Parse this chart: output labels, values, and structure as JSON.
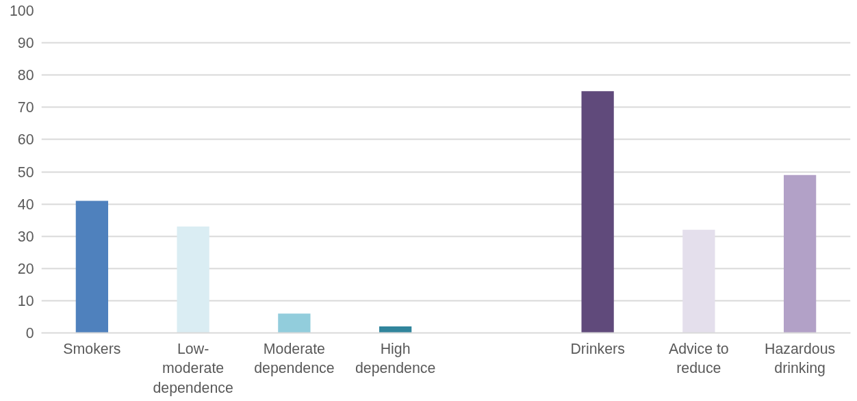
{
  "chart_data": {
    "type": "bar",
    "categories": [
      "Smokers",
      "Low-moderate dependence",
      "Moderate dependence",
      "High dependence",
      null,
      "Drinkers",
      "Advice to reduce",
      "Hazardous drinking"
    ],
    "values": [
      41,
      33,
      6,
      2,
      null,
      75,
      32,
      49
    ],
    "colors": [
      "#4f81bd",
      "#daedf3",
      "#92cddc",
      "#31859c",
      "#ffffff",
      "#604a7b",
      "#e4dfec",
      "#b2a1c7"
    ],
    "ylim": [
      0,
      100
    ],
    "yticks": [
      0,
      10,
      20,
      30,
      40,
      50,
      60,
      70,
      80,
      90,
      100
    ],
    "grid": "y"
  }
}
